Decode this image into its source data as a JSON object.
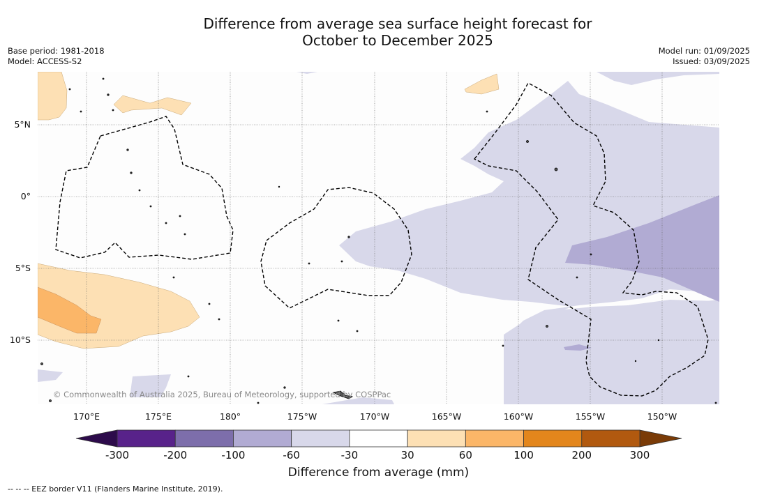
{
  "title": {
    "line1": "Difference from average sea surface height forecast for",
    "line2": "October to December 2025"
  },
  "meta_left": {
    "base_period": "Base period: 1981-2018",
    "model": "Model: ACCESS-S2"
  },
  "meta_right": {
    "model_run": "Model run: 01/09/2025",
    "issued": "Issued: 03/09/2025"
  },
  "map": {
    "lat_labels": [
      "5°N",
      "0°",
      "5°S",
      "10°S"
    ],
    "lon_labels": [
      "170°E",
      "175°E",
      "180°",
      "175°W",
      "170°W",
      "165°W",
      "160°W",
      "155°W",
      "150°W"
    ],
    "copyright": "© Commonwealth of Australia 2025, Bureau of Meteorology, supported by COSPPac",
    "colors": {
      "light_orange": "#fde0b4",
      "mid_orange": "#fbb668",
      "light_purple": "#d8d8ea",
      "mid_purple": "#b1abd3",
      "eez_border": "#000000"
    }
  },
  "colorbar": {
    "labels": [
      "-300",
      "-200",
      "-100",
      "-60",
      "-30",
      "30",
      "60",
      "100",
      "200",
      "300"
    ],
    "colors": [
      "#58228a",
      "#7d6eab",
      "#b1abd3",
      "#d8d8ea",
      "#ffffff",
      "#fde0b4",
      "#fbb668",
      "#e3861c",
      "#b1590f"
    ],
    "under_color": "#2d0b4b",
    "over_color": "#7a3b07",
    "title": "Difference from average (mm)"
  },
  "footnote": "--  --  -- EEZ border V11 (Flanders Marine Institute, 2019)."
}
